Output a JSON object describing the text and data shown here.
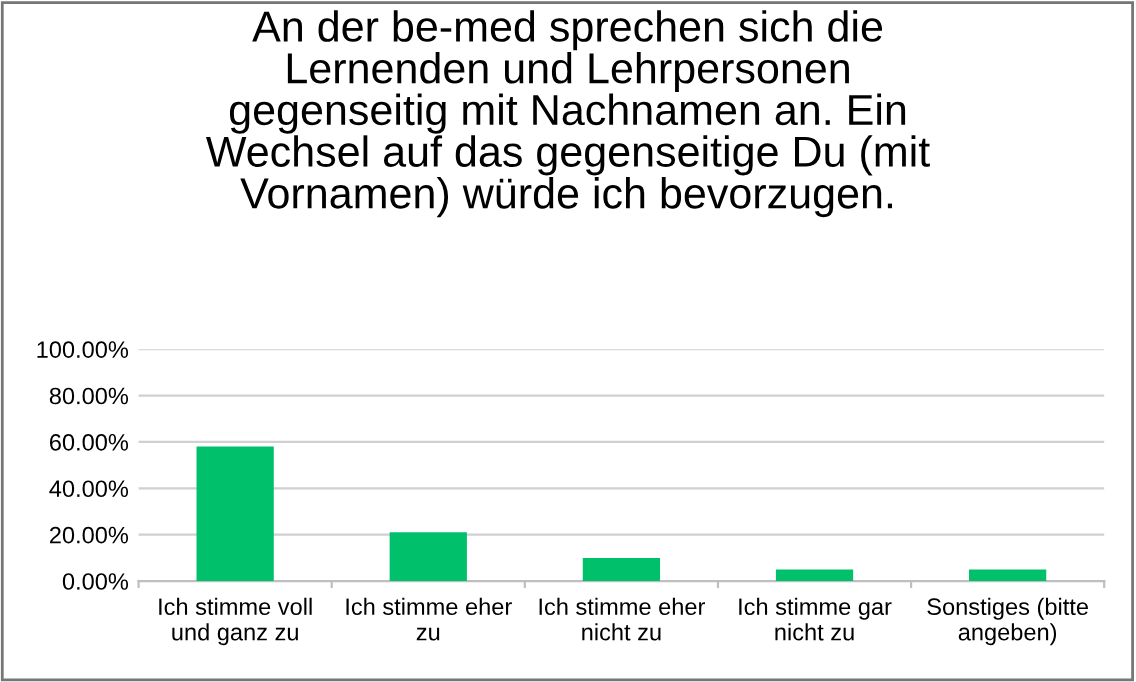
{
  "chart_data": {
    "type": "bar",
    "title": "An der be-med sprechen sich die\nLernenden und Lehrpersonen\ngegenseitig mit Nachnamen an. Ein\nWechsel auf das gegenseitige Du (mit\nVornamen) würde ich bevorzugen.",
    "categories": [
      "Ich stimme voll\nund ganz zu",
      "Ich stimme eher\nzu",
      "Ich stimme eher\nnicht zu",
      "Ich stimme gar\nnicht zu",
      "Sonstiges (bitte\nangeben)"
    ],
    "values": [
      58,
      21,
      10,
      5,
      5
    ],
    "color": "#00c06c",
    "ylim": [
      0,
      100
    ],
    "yticks": [
      {
        "value": 0,
        "label": "0.00%"
      },
      {
        "value": 20,
        "label": "20.00%"
      },
      {
        "value": 40,
        "label": "40.00%"
      },
      {
        "value": 60,
        "label": "60.00%"
      },
      {
        "value": 80,
        "label": "80.00%"
      },
      {
        "value": 100,
        "label": "100.00%"
      }
    ],
    "grid": "y"
  }
}
